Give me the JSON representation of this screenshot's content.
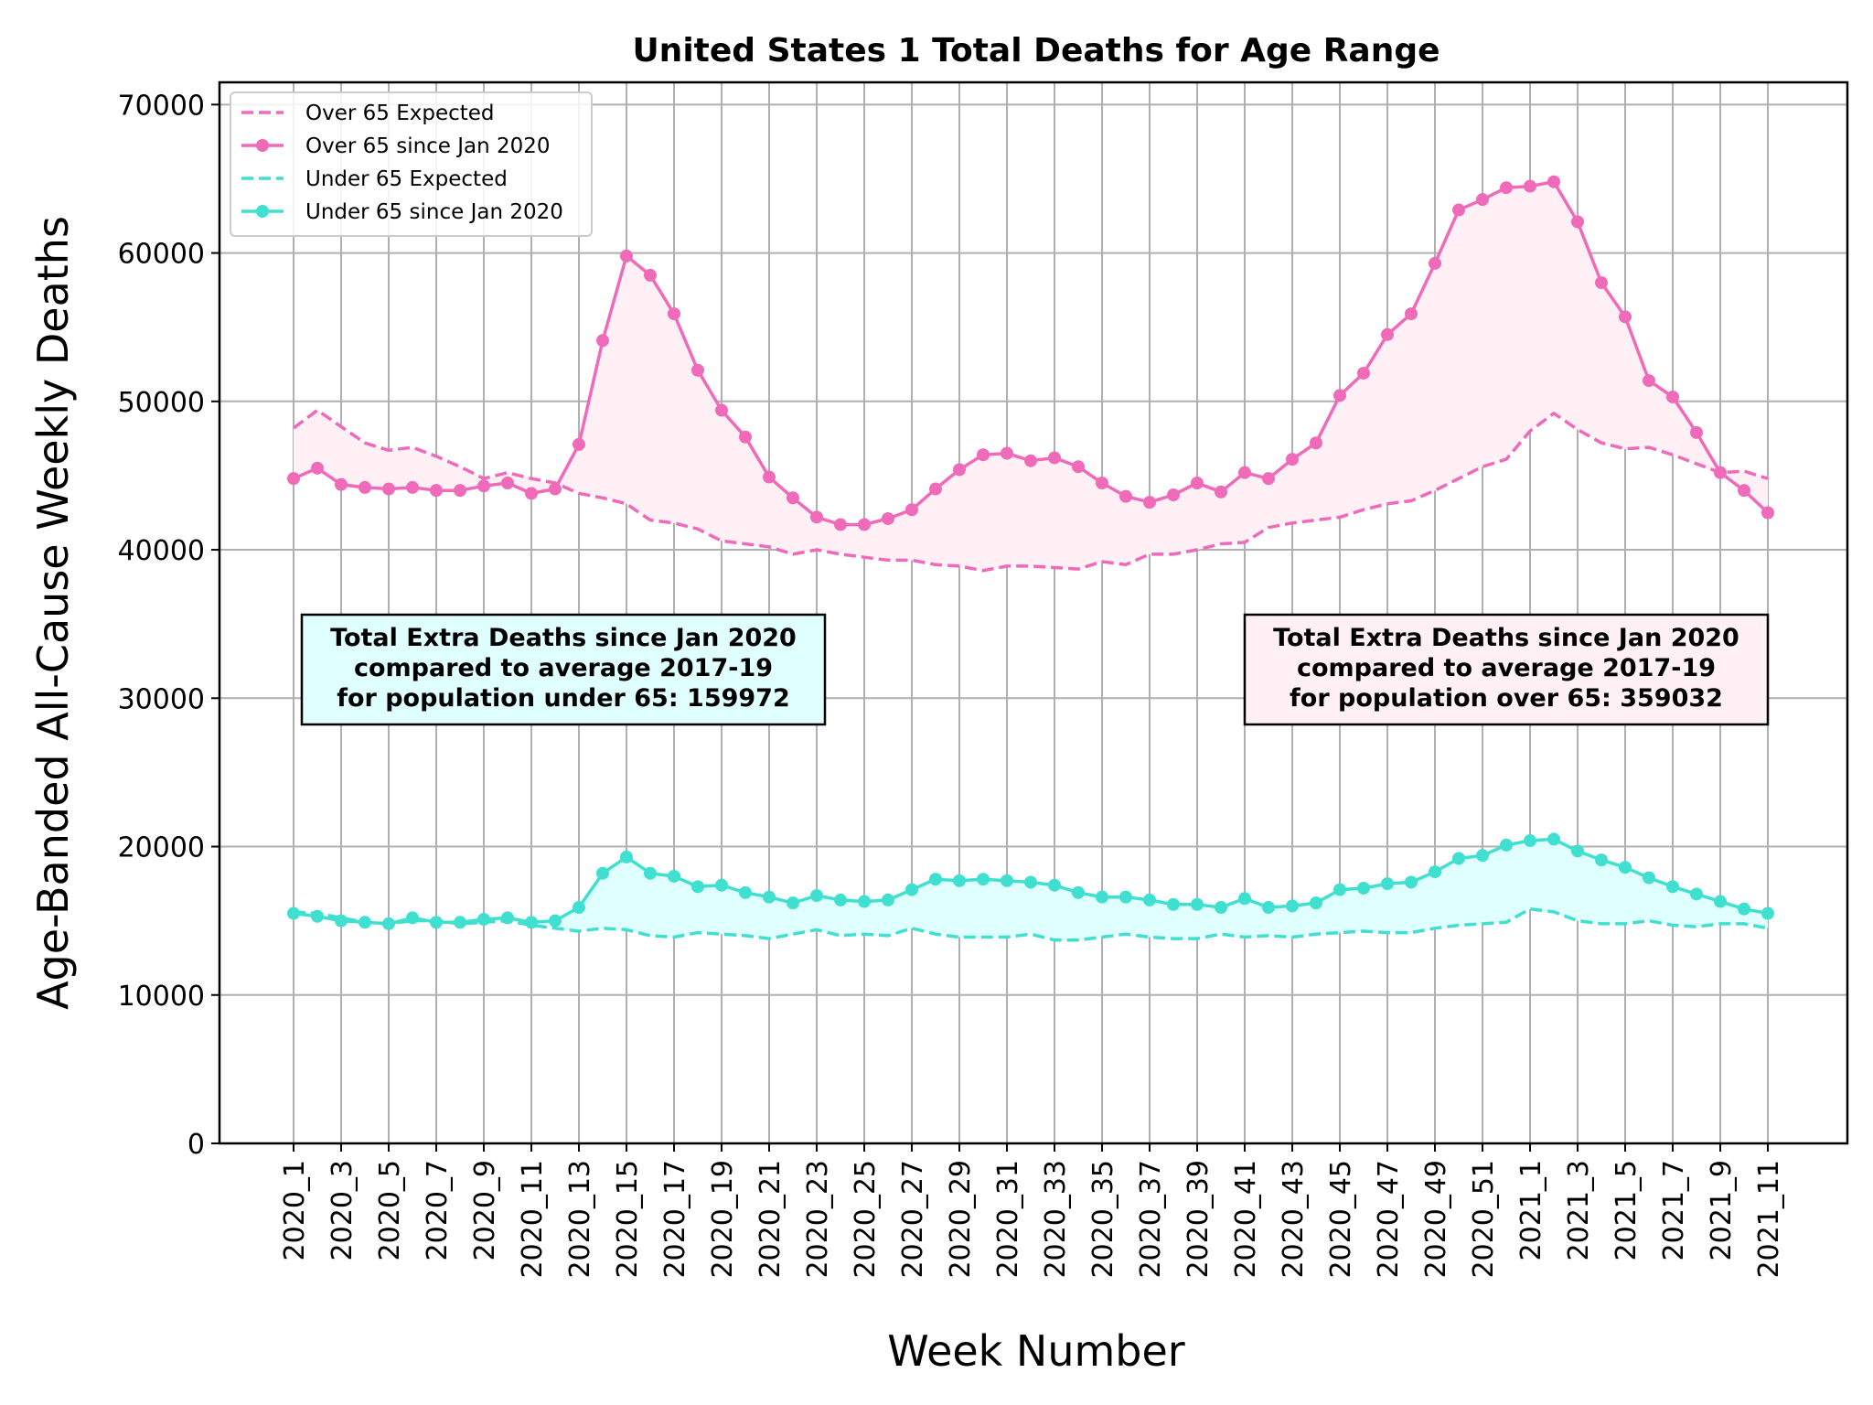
{
  "chart_data": {
    "type": "line",
    "title": "United States 1 Total Deaths for Age Range",
    "xlabel": "Week Number",
    "ylabel": "Age-Banded All-Cause Weekly Deaths",
    "ylim": [
      0,
      71500
    ],
    "yticks": [
      0,
      10000,
      20000,
      30000,
      40000,
      50000,
      60000,
      70000
    ],
    "grid": true,
    "legend_position": "top-left",
    "categories": [
      "2020_1",
      "2020_2",
      "2020_3",
      "2020_4",
      "2020_5",
      "2020_6",
      "2020_7",
      "2020_8",
      "2020_9",
      "2020_10",
      "2020_11",
      "2020_12",
      "2020_13",
      "2020_14",
      "2020_15",
      "2020_16",
      "2020_17",
      "2020_18",
      "2020_19",
      "2020_20",
      "2020_21",
      "2020_22",
      "2020_23",
      "2020_24",
      "2020_25",
      "2020_26",
      "2020_27",
      "2020_28",
      "2020_29",
      "2020_30",
      "2020_31",
      "2020_32",
      "2020_33",
      "2020_34",
      "2020_35",
      "2020_36",
      "2020_37",
      "2020_38",
      "2020_39",
      "2020_40",
      "2020_41",
      "2020_42",
      "2020_43",
      "2020_44",
      "2020_45",
      "2020_46",
      "2020_47",
      "2020_48",
      "2020_49",
      "2020_50",
      "2020_51",
      "2020_52",
      "2021_1",
      "2021_2",
      "2021_3",
      "2021_4",
      "2021_5",
      "2021_6",
      "2021_7",
      "2021_8",
      "2021_9",
      "2021_10",
      "2021_11"
    ],
    "tick_labels": [
      "2020_1",
      "2020_3",
      "2020_5",
      "2020_7",
      "2020_9",
      "2020_11",
      "2020_13",
      "2020_15",
      "2020_17",
      "2020_19",
      "2020_21",
      "2020_23",
      "2020_25",
      "2020_27",
      "2020_29",
      "2020_31",
      "2020_33",
      "2020_35",
      "2020_37",
      "2020_39",
      "2020_41",
      "2020_43",
      "2020_45",
      "2020_47",
      "2020_49",
      "2020_51",
      "2021_1",
      "2021_3",
      "2021_5",
      "2021_7",
      "2021_9",
      "2021_11"
    ],
    "series": [
      {
        "name": "Over 65 Expected",
        "style": "dashed",
        "color": "#f06aba",
        "values": [
          48200,
          49400,
          48300,
          47200,
          46700,
          46900,
          46300,
          45600,
          44800,
          45200,
          44800,
          44500,
          43800,
          43500,
          43100,
          42000,
          41800,
          41400,
          40600,
          40400,
          40200,
          39700,
          40000,
          39700,
          39500,
          39300,
          39300,
          39000,
          38900,
          38600,
          38900,
          38900,
          38800,
          38700,
          39200,
          39000,
          39700,
          39700,
          40000,
          40400,
          40500,
          41500,
          41800,
          42000,
          42200,
          42700,
          43100,
          43300,
          44000,
          44800,
          45600,
          46100,
          48000,
          49200,
          48100,
          47200,
          46800,
          46900,
          46400,
          45800,
          45200,
          45300,
          44800
        ]
      },
      {
        "name": "Over 65 since Jan 2020",
        "style": "solid-marker",
        "color": "#f06aba",
        "values": [
          44800,
          45500,
          44400,
          44200,
          44100,
          44200,
          44000,
          44000,
          44300,
          44500,
          43800,
          44100,
          47100,
          54100,
          59800,
          58500,
          55900,
          52100,
          49400,
          47600,
          44900,
          43500,
          42200,
          41700,
          41700,
          42100,
          42700,
          44100,
          45400,
          46400,
          46500,
          46000,
          46200,
          45600,
          44500,
          43600,
          43200,
          43700,
          44500,
          43900,
          45200,
          44800,
          46100,
          47200,
          50400,
          51900,
          54500,
          55900,
          59300,
          62900,
          63600,
          64400,
          64500,
          64800,
          62100,
          58000,
          55700,
          51400,
          50300,
          47900,
          45200,
          44000,
          42500
        ]
      },
      {
        "name": "Under 65 Expected",
        "style": "dashed",
        "color": "#40e0d0",
        "values": [
          15600,
          15500,
          15200,
          14900,
          14800,
          15000,
          15000,
          14800,
          14900,
          15000,
          14700,
          14500,
          14300,
          14500,
          14400,
          14000,
          13900,
          14200,
          14100,
          14000,
          13800,
          14100,
          14400,
          14000,
          14100,
          14000,
          14500,
          14100,
          13900,
          13900,
          13900,
          14100,
          13700,
          13700,
          13900,
          14100,
          13900,
          13800,
          13800,
          14100,
          13900,
          14000,
          13900,
          14100,
          14200,
          14300,
          14200,
          14200,
          14500,
          14700,
          14800,
          14900,
          15800,
          15600,
          15000,
          14800,
          14800,
          15000,
          14700,
          14600,
          14800,
          14800,
          14500
        ]
      },
      {
        "name": "Under 65 since Jan 2020",
        "style": "solid-marker",
        "color": "#40e0d0",
        "values": [
          15500,
          15300,
          15000,
          14900,
          14800,
          15200,
          14900,
          14900,
          15100,
          15200,
          14900,
          15000,
          15900,
          18200,
          19300,
          18200,
          18000,
          17300,
          17400,
          16900,
          16600,
          16200,
          16700,
          16400,
          16300,
          16400,
          17100,
          17800,
          17700,
          17800,
          17700,
          17600,
          17400,
          16900,
          16600,
          16600,
          16400,
          16100,
          16100,
          15900,
          16500,
          15900,
          16000,
          16200,
          17100,
          17200,
          17500,
          17600,
          18300,
          19200,
          19400,
          20100,
          20400,
          20500,
          19700,
          19100,
          18600,
          17900,
          17300,
          16800,
          16300,
          15800,
          15500
        ]
      }
    ],
    "annotations": [
      {
        "lines": [
          "Total Extra Deaths since Jan 2020",
          "compared to average 2017-19",
          "for population under 65: 159972"
        ],
        "box_color": "#e0ffff"
      },
      {
        "lines": [
          "Total Extra Deaths since Jan 2020",
          "compared to average 2017-19",
          "for population over 65: 359032"
        ],
        "box_color": "#fff0f5"
      }
    ]
  }
}
